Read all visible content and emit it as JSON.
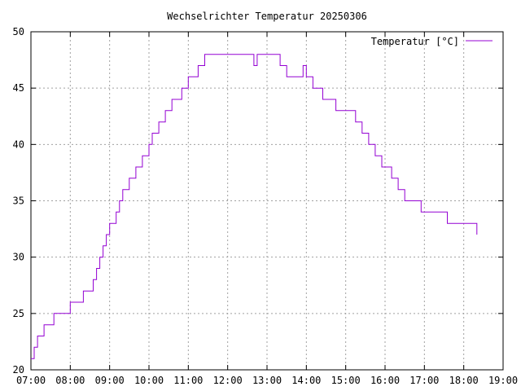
{
  "chart_data": {
    "type": "line",
    "title": "Wechselrichter Temperatur 20250306",
    "xlabel": "",
    "ylabel": "",
    "xlim": [
      "07:00",
      "19:00"
    ],
    "ylim": [
      20,
      50
    ],
    "grid": true,
    "legend_position": "top-right",
    "x_tick_labels": [
      "07:00",
      "08:00",
      "09:00",
      "10:00",
      "11:00",
      "12:00",
      "13:00",
      "14:00",
      "15:00",
      "16:00",
      "17:00",
      "18:00",
      "19:00"
    ],
    "y_tick_labels": [
      "20",
      "25",
      "30",
      "35",
      "40",
      "45",
      "50"
    ],
    "series": [
      {
        "name": "Temperatur [°C]",
        "color": "#9400d3",
        "step": true,
        "x": [
          "07:00",
          "07:05",
          "07:10",
          "07:20",
          "07:35",
          "08:00",
          "08:20",
          "08:35",
          "08:40",
          "08:45",
          "08:50",
          "08:55",
          "09:00",
          "09:10",
          "09:15",
          "09:20",
          "09:30",
          "09:40",
          "09:50",
          "10:00",
          "10:05",
          "10:15",
          "10:25",
          "10:35",
          "10:50",
          "11:00",
          "11:15",
          "11:25",
          "11:40",
          "12:00",
          "12:15",
          "12:40",
          "12:45",
          "12:50",
          "13:10",
          "13:20",
          "13:30",
          "13:45",
          "13:55",
          "14:00",
          "14:10",
          "14:25",
          "14:45",
          "15:00",
          "15:15",
          "15:25",
          "15:35",
          "15:45",
          "15:55",
          "16:10",
          "16:20",
          "16:30",
          "16:40",
          "16:55",
          "17:00",
          "17:10",
          "17:35",
          "18:00",
          "18:15",
          "18:20"
        ],
        "y": [
          21,
          22,
          23,
          24,
          25,
          26,
          27,
          28,
          29,
          30,
          31,
          32,
          33,
          34,
          35,
          36,
          37,
          38,
          39,
          40,
          41,
          42,
          43,
          44,
          45,
          46,
          47,
          48,
          48,
          48,
          48,
          47,
          48,
          48,
          48,
          47,
          46,
          46,
          47,
          46,
          45,
          44,
          43,
          43,
          42,
          41,
          40,
          39,
          38,
          37,
          36,
          35,
          35,
          34,
          34,
          34,
          33,
          33,
          33,
          32
        ]
      }
    ]
  }
}
